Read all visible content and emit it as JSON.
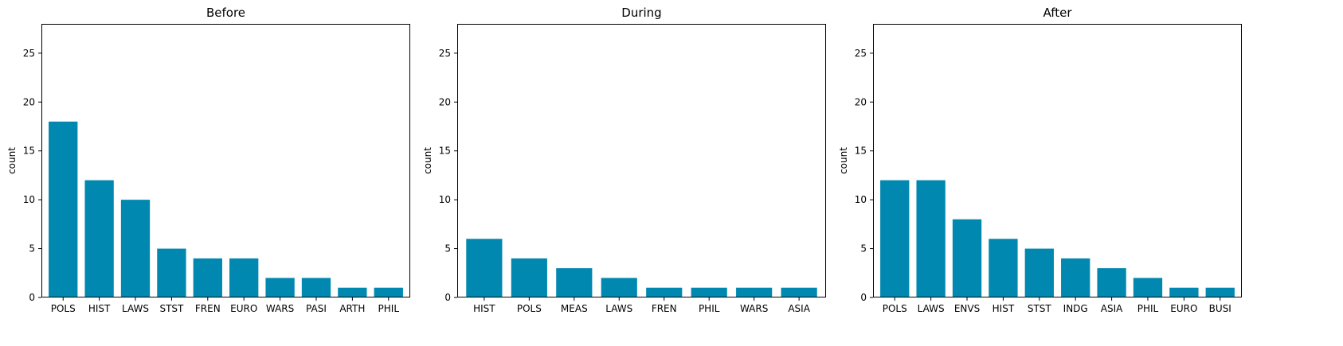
{
  "bar_color": "#0088b0",
  "chart_data": [
    {
      "type": "bar",
      "title": "Before",
      "xlabel": "",
      "ylabel": "count",
      "ylim": [
        0,
        28
      ],
      "yticks": [
        0,
        5,
        10,
        15,
        20,
        25
      ],
      "categories": [
        "POLS",
        "HIST",
        "LAWS",
        "STST",
        "FREN",
        "EURO",
        "WARS",
        "PASI",
        "ARTH",
        "PHIL"
      ],
      "values": [
        18,
        12,
        10,
        5,
        4,
        4,
        2,
        2,
        1,
        1
      ],
      "grid": false,
      "legend": "none"
    },
    {
      "type": "bar",
      "title": "During",
      "xlabel": "",
      "ylabel": "count",
      "ylim": [
        0,
        28
      ],
      "yticks": [
        0,
        5,
        10,
        15,
        20,
        25
      ],
      "categories": [
        "HIST",
        "POLS",
        "MEAS",
        "LAWS",
        "FREN",
        "PHIL",
        "WARS",
        "ASIA"
      ],
      "values": [
        6,
        4,
        3,
        2,
        1,
        1,
        1,
        1
      ],
      "grid": false,
      "legend": "none"
    },
    {
      "type": "bar",
      "title": "After",
      "xlabel": "",
      "ylabel": "count",
      "ylim": [
        0,
        28
      ],
      "yticks": [
        0,
        5,
        10,
        15,
        20,
        25
      ],
      "categories": [
        "POLS",
        "LAWS",
        "ENVS",
        "HIST",
        "STST",
        "INDG",
        "ASIA",
        "PHIL",
        "EURO",
        "BUSI"
      ],
      "values": [
        12,
        12,
        8,
        6,
        5,
        4,
        3,
        2,
        1,
        1
      ],
      "grid": false,
      "legend": "none"
    }
  ]
}
